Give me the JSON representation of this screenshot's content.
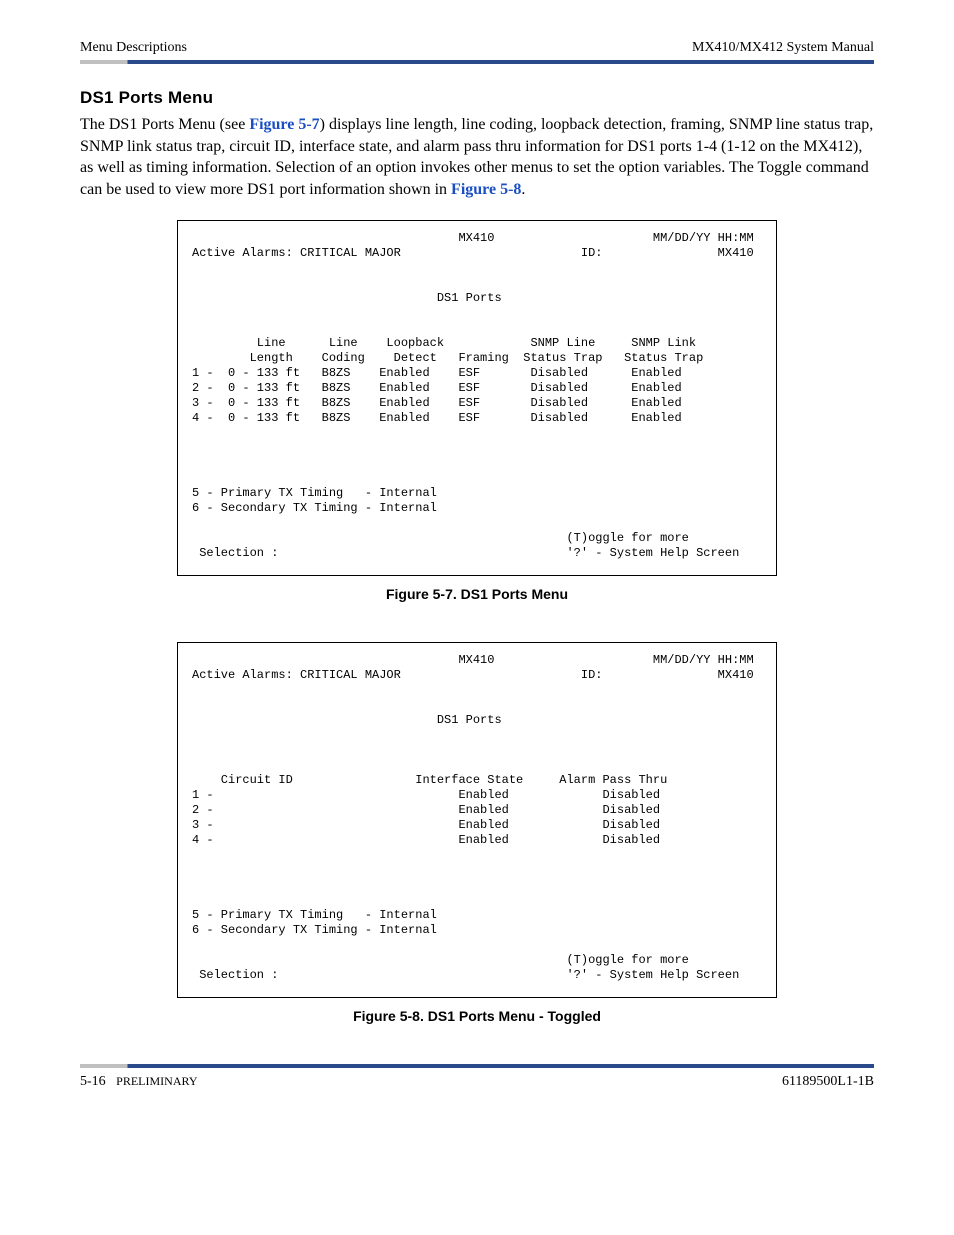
{
  "header": {
    "left": "Menu Descriptions",
    "right": "MX410/MX412 System Manual"
  },
  "section_title": "DS1 Ports Menu",
  "paragraph_parts": {
    "p1": "The DS1 Ports Menu (see ",
    "link1": "Figure 5-7",
    "p2": ") displays line length, line coding, loopback detection, framing, SNMP line status trap, SNMP link status trap, circuit ID, interface state, and alarm pass thru information for DS1 ports 1-4 (1-12 on the MX412), as well as timing information. Selection of an option invokes other menus to set the option variables. The Toggle command can be used to view more DS1 port information shown in ",
    "link2": "Figure 5-8",
    "p3": "."
  },
  "terminal1": {
    "header_center": "MX410",
    "header_right": "MM/DD/YY HH:MM",
    "alarms_label": "Active Alarms: CRITICAL MAJOR",
    "id_label": "ID:",
    "id_value": "MX410",
    "title": "DS1 Ports",
    "cols": {
      "c1a": "Line",
      "c1b": "Length",
      "c2a": "Line",
      "c2b": "Coding",
      "c3a": "Loopback",
      "c3b": "Detect",
      "c4": "Framing",
      "c5a": "SNMP Line",
      "c5b": "Status Trap",
      "c6a": "SNMP Link",
      "c6b": "Status Trap"
    },
    "rows": [
      {
        "n": "1",
        "len": "0 - 133 ft",
        "cod": "B8ZS",
        "loop": "Enabled",
        "fram": "ESF",
        "snline": "Disabled",
        "snlink": "Enabled"
      },
      {
        "n": "2",
        "len": "0 - 133 ft",
        "cod": "B8ZS",
        "loop": "Enabled",
        "fram": "ESF",
        "snline": "Disabled",
        "snlink": "Enabled"
      },
      {
        "n": "3",
        "len": "0 - 133 ft",
        "cod": "B8ZS",
        "loop": "Enabled",
        "fram": "ESF",
        "snline": "Disabled",
        "snlink": "Enabled"
      },
      {
        "n": "4",
        "len": "0 - 133 ft",
        "cod": "B8ZS",
        "loop": "Enabled",
        "fram": "ESF",
        "snline": "Disabled",
        "snlink": "Enabled"
      }
    ],
    "timing5": "5 - Primary TX Timing   - Internal",
    "timing6": "6 - Secondary TX Timing - Internal",
    "toggle": "(T)oggle for more",
    "selection": "Selection :",
    "help": "'?' - System Help Screen"
  },
  "caption1": "Figure 5-7.  DS1 Ports Menu",
  "terminal2": {
    "header_center": "MX410",
    "header_right": "MM/DD/YY HH:MM",
    "alarms_label": "Active Alarms: CRITICAL MAJOR",
    "id_label": "ID:",
    "id_value": "MX410",
    "title": "DS1 Ports",
    "cols": {
      "c1": "Circuit ID",
      "c2": "Interface State",
      "c3": "Alarm Pass Thru"
    },
    "rows": [
      {
        "n": "1",
        "ifs": "Enabled",
        "apt": "Disabled"
      },
      {
        "n": "2",
        "ifs": "Enabled",
        "apt": "Disabled"
      },
      {
        "n": "3",
        "ifs": "Enabled",
        "apt": "Disabled"
      },
      {
        "n": "4",
        "ifs": "Enabled",
        "apt": "Disabled"
      }
    ],
    "timing5": "5 - Primary TX Timing   - Internal",
    "timing6": "6 - Secondary TX Timing - Internal",
    "toggle": "(T)oggle for more",
    "selection": "Selection :",
    "help": "'?' - System Help Screen"
  },
  "caption2": "Figure 5-8.  DS1 Ports Menu - Toggled",
  "footer": {
    "left_page": "5-16",
    "left_label": "PRELIMINARY",
    "right": "61189500L1-1B"
  }
}
